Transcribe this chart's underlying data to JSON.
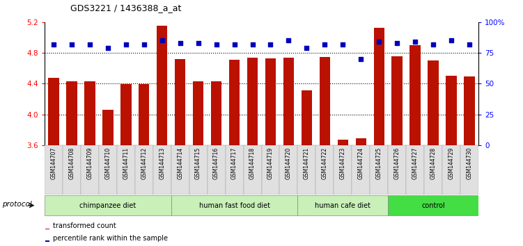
{
  "title": "GDS3221 / 1436388_a_at",
  "samples": [
    "GSM144707",
    "GSM144708",
    "GSM144709",
    "GSM144710",
    "GSM144711",
    "GSM144712",
    "GSM144713",
    "GSM144714",
    "GSM144715",
    "GSM144716",
    "GSM144717",
    "GSM144718",
    "GSM144719",
    "GSM144720",
    "GSM144721",
    "GSM144722",
    "GSM144723",
    "GSM144724",
    "GSM144725",
    "GSM144726",
    "GSM144727",
    "GSM144728",
    "GSM144729",
    "GSM144730"
  ],
  "transformed_count": [
    4.48,
    4.43,
    4.43,
    4.06,
    4.39,
    4.39,
    5.15,
    4.72,
    4.43,
    4.43,
    4.71,
    4.74,
    4.73,
    4.74,
    4.31,
    4.75,
    3.67,
    3.69,
    5.13,
    4.76,
    4.9,
    4.7,
    4.5,
    4.49
  ],
  "percentile_rank": [
    82,
    82,
    82,
    79,
    82,
    82,
    85,
    83,
    83,
    82,
    82,
    82,
    82,
    85,
    79,
    82,
    82,
    70,
    84,
    83,
    84,
    82,
    85,
    82
  ],
  "groups": [
    {
      "label": "chimpanzee diet",
      "start": 0,
      "end": 6,
      "color": "#c8f0b8"
    },
    {
      "label": "human fast food diet",
      "start": 7,
      "end": 13,
      "color": "#c8f0b8"
    },
    {
      "label": "human cafe diet",
      "start": 14,
      "end": 18,
      "color": "#c8f0b8"
    },
    {
      "label": "control",
      "start": 19,
      "end": 23,
      "color": "#44dd44"
    }
  ],
  "ylim_left": [
    3.6,
    5.2
  ],
  "ylim_right": [
    0,
    100
  ],
  "yticks_left": [
    3.6,
    4.0,
    4.4,
    4.8,
    5.2
  ],
  "yticks_right": [
    0,
    25,
    50,
    75,
    100
  ],
  "ytick_labels_right": [
    "0",
    "25",
    "50",
    "75",
    "100%"
  ],
  "bar_color": "#bb1100",
  "dot_color": "#0000bb",
  "bar_bottom": 3.6,
  "legend_items": [
    {
      "label": "transformed count",
      "color": "#bb1100"
    },
    {
      "label": "percentile rank within the sample",
      "color": "#0000bb"
    }
  ],
  "protocol_label": "protocol"
}
